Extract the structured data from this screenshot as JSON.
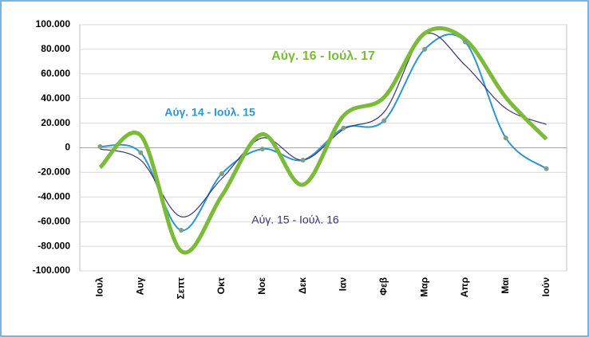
{
  "chart_data": {
    "type": "line",
    "categories": [
      "Ιουλ",
      "Αυγ",
      "Σεπτ",
      "Οκτ",
      "Νοε",
      "Δεκ",
      "Ιαν",
      "Φεβ",
      "Μαρ",
      "Απρ",
      "Μαι",
      "Ιούν"
    ],
    "series": [
      {
        "name": "Αύγ. 14 - Ιούλ. 15",
        "color": "#2e95d3",
        "marker_color": "#7d9f86",
        "width": 2,
        "values": [
          1000,
          -4000,
          -67000,
          -21000,
          -1000,
          -10000,
          16000,
          22000,
          80000,
          86000,
          8000,
          -17000
        ]
      },
      {
        "name": "Αύγ. 15 - Ιούλ. 16",
        "color": "#3d3470",
        "width": 1.2,
        "values": [
          -1000,
          -10000,
          -56000,
          -25000,
          8000,
          -10000,
          15000,
          29000,
          92000,
          67000,
          32000,
          19000
        ]
      },
      {
        "name": "Αύγ. 16 - Ιούλ. 17",
        "color": "#7cba3a",
        "width": 5,
        "values": [
          -16000,
          10000,
          -84000,
          -39000,
          11000,
          -30000,
          26000,
          41000,
          93000,
          88000,
          41000,
          7000
        ]
      }
    ],
    "ylim": [
      -100000,
      100000
    ],
    "yticks": [
      {
        "value": -100000,
        "label": "-100.000"
      },
      {
        "value": -80000,
        "label": "-80.000"
      },
      {
        "value": -60000,
        "label": "-60.000"
      },
      {
        "value": -40000,
        "label": "-40.000"
      },
      {
        "value": -20000,
        "label": "-20.000"
      },
      0,
      {
        "value": 20000,
        "label": "20.000"
      },
      {
        "value": 40000,
        "label": "40.000"
      },
      {
        "value": 60000,
        "label": "60.000"
      },
      {
        "value": 80000,
        "label": "80.000"
      },
      {
        "value": 100000,
        "label": "100.000"
      }
    ],
    "grid": true
  }
}
